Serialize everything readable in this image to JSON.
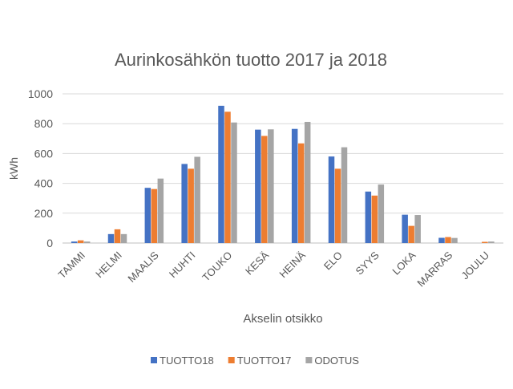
{
  "chart_data": {
    "type": "bar",
    "title": "Aurinkosähkön tuotto 2017 ja 2018",
    "xlabel": "Akselin otsikko",
    "ylabel": "kWh",
    "ylim": [
      0,
      1000
    ],
    "yticks": [
      0,
      200,
      400,
      600,
      800,
      1000
    ],
    "grid": true,
    "legend": "bottom",
    "categories": [
      "TAMMI",
      "HELMI",
      "MAALIS",
      "HUHTI",
      "TOUKO",
      "KESÄ",
      "HEINÄ",
      "ELO",
      "SYYS",
      "LOKA",
      "MARRAS",
      "JOULU"
    ],
    "series": [
      {
        "name": "TUOTTO18",
        "color": "#4472C4",
        "values": [
          10,
          60,
          370,
          530,
          920,
          760,
          765,
          580,
          345,
          190,
          35,
          0
        ]
      },
      {
        "name": "TUOTTO17",
        "color": "#ED7D31",
        "values": [
          18,
          92,
          362,
          498,
          880,
          718,
          668,
          498,
          318,
          115,
          40,
          8
        ]
      },
      {
        "name": "ODOTUS",
        "color": "#A5A5A5",
        "values": [
          10,
          60,
          432,
          578,
          808,
          762,
          812,
          642,
          392,
          188,
          34,
          10
        ]
      }
    ]
  }
}
